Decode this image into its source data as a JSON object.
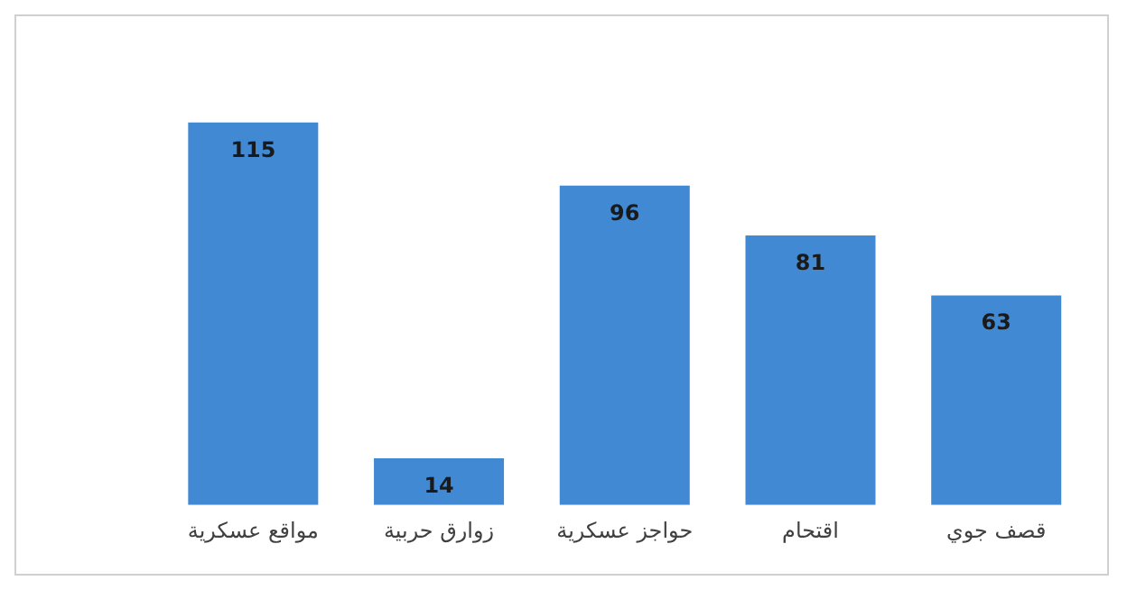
{
  "chart_data": {
    "type": "bar",
    "categories": [
      "مواقع عسكرية",
      "زوارق حربية",
      "حواجز عسكرية",
      "اقتحام",
      "قصف جوي"
    ],
    "values": [
      115,
      14,
      96,
      81,
      63
    ],
    "color": "#4189d3",
    "data_labels": true,
    "grid": false,
    "legend": false
  }
}
